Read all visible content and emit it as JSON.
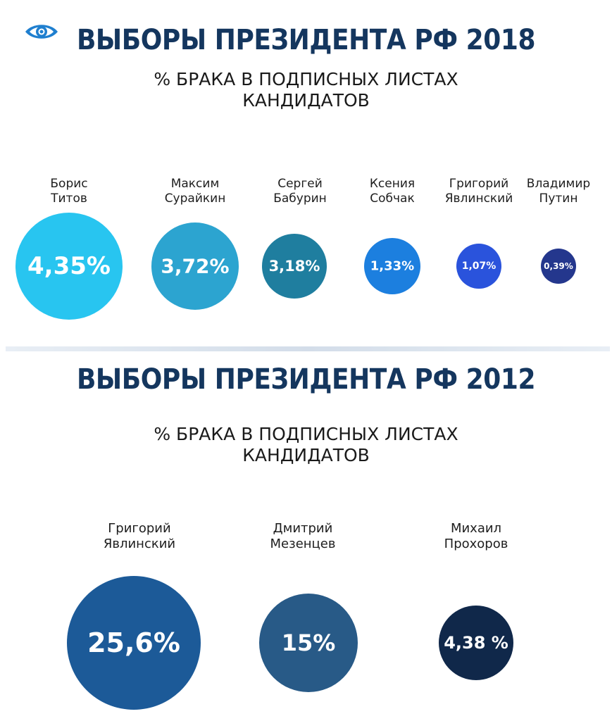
{
  "chart_data": [
    {
      "type": "bubble",
      "title": "ВЫБОРЫ ПРЕЗИДЕНТА РФ 2018",
      "subtitle": [
        "% БРАКА В ПОДПИСНЫХ ЛИСТАХ",
        "КАНДИДАТОВ"
      ],
      "unit": "%",
      "series": [
        {
          "name": [
            "Борис",
            "Титов"
          ],
          "value": 4.35,
          "label": "4,35%",
          "color": "#28c5f0"
        },
        {
          "name": [
            "Максим",
            "Сурайкин"
          ],
          "value": 3.72,
          "label": "3,72%",
          "color": "#2ca4d0"
        },
        {
          "name": [
            "Сергей",
            "Бабурин"
          ],
          "value": 3.18,
          "label": "3,18%",
          "color": "#1f7e9f"
        },
        {
          "name": [
            "Ксения",
            "Собчак"
          ],
          "value": 1.33,
          "label": "1,33%",
          "color": "#1c7fdf"
        },
        {
          "name": [
            "Григорий",
            "Явлинский"
          ],
          "value": 1.07,
          "label": "1,07%",
          "color": "#2a53dc"
        },
        {
          "name": [
            "Владимир",
            "Путин"
          ],
          "value": 0.39,
          "label": "0,39%",
          "color": "#24378d"
        }
      ]
    },
    {
      "type": "bubble",
      "title": "ВЫБОРЫ ПРЕЗИДЕНТА РФ 2012",
      "subtitle": [
        "% БРАКА В ПОДПИСНЫХ ЛИСТАХ",
        "КАНДИДАТОВ"
      ],
      "unit": "%",
      "series": [
        {
          "name": [
            "Григорий",
            "Явлинский"
          ],
          "value": 25.6,
          "label": "25,6%",
          "color": "#1c5a98"
        },
        {
          "name": [
            "Дмитрий",
            "Мезенцев"
          ],
          "value": 15,
          "label": "15%",
          "color": "#285a87"
        },
        {
          "name": [
            "Михаил",
            "Прохоров"
          ],
          "value": 4.38,
          "label": "4,38 %",
          "color": "#10284a"
        }
      ]
    }
  ],
  "colors": {
    "title": "#14365e",
    "logo": "#1f7fcf"
  },
  "icons": {
    "logo": "eye-icon"
  }
}
